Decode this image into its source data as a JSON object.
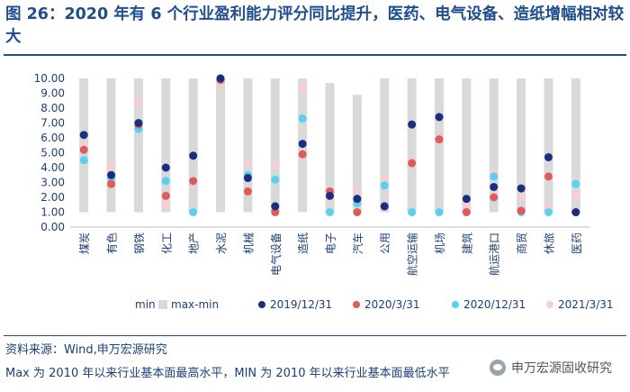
{
  "title": "图 26：2020 年有 6 个行业盈利能力评分同比提升，医药、电气设备、造纸增幅相对较大",
  "source": "资料来源：Wind,申万宏源研究",
  "note": "Max 为 2010 年以来行业基本面最高水平，MIN 为 2010 年以来行业基本面最低水平",
  "watermark": "申万宏源固收研究",
  "colors": {
    "max_min": "#d9d9d9",
    "s2019": "#1a2d80",
    "s2020_3": "#e05a5a",
    "s2020_12": "#5ad0f0",
    "s2021_3": "#f8cdd4",
    "axis_text": "#1a3f75"
  },
  "chart_data": {
    "type": "scatter",
    "title": "",
    "ylim": [
      0,
      10
    ],
    "yticks": [
      "0.00",
      "1.00",
      "2.00",
      "3.00",
      "4.00",
      "5.00",
      "6.00",
      "7.00",
      "8.00",
      "9.00",
      "10.00"
    ],
    "categories": [
      "煤炭",
      "有色",
      "钢铁",
      "化工",
      "地产",
      "水泥",
      "机械",
      "电气设备",
      "造纸",
      "电子",
      "汽车",
      "公用",
      "航空运输",
      "机场",
      "建筑",
      "航运港口",
      "商贸",
      "休旅",
      "医药"
    ],
    "min": [
      1.0,
      1.0,
      1.0,
      1.0,
      1.0,
      1.0,
      1.0,
      1.0,
      1.0,
      1.0,
      1.0,
      1.0,
      1.0,
      1.0,
      1.0,
      1.0,
      1.0,
      1.0,
      1.0
    ],
    "max": [
      10.0,
      10.0,
      10.0,
      10.0,
      10.0,
      10.0,
      10.0,
      10.0,
      10.0,
      9.7,
      8.9,
      10.0,
      10.0,
      10.0,
      10.0,
      10.0,
      10.0,
      10.0,
      10.0
    ],
    "series": [
      {
        "name": "2019/12/31",
        "values": [
          6.2,
          3.5,
          7.0,
          4.0,
          4.8,
          10.0,
          3.3,
          1.4,
          5.6,
          2.1,
          1.9,
          1.4,
          6.9,
          7.4,
          1.9,
          2.7,
          2.6,
          4.7,
          1.0
        ]
      },
      {
        "name": "2020/3/31",
        "values": [
          5.2,
          2.9,
          6.9,
          2.1,
          3.1,
          9.9,
          2.4,
          1.0,
          4.9,
          2.4,
          1.0,
          1.4,
          4.3,
          5.9,
          1.0,
          2.0,
          1.1,
          3.4,
          1.0
        ]
      },
      {
        "name": "2020/12/31",
        "values": [
          4.5,
          3.3,
          6.6,
          3.1,
          1.0,
          10.0,
          3.5,
          3.2,
          7.3,
          1.0,
          1.6,
          2.8,
          1.0,
          1.0,
          1.0,
          3.4,
          1.0,
          1.0,
          2.9
        ]
      },
      {
        "name": "2021/3/31",
        "values": [
          5.5,
          4.1,
          8.4,
          1.5,
          1.0,
          9.7,
          4.3,
          4.2,
          9.3,
          2.0,
          2.6,
          3.4,
          1.0,
          1.0,
          1.4,
          3.6,
          2.0,
          1.4,
          2.1
        ]
      }
    ],
    "legend": [
      "min",
      "max-min",
      "2019/12/31",
      "2020/3/31",
      "2020/12/31",
      "2021/3/31"
    ],
    "legend_position": "bottom"
  }
}
